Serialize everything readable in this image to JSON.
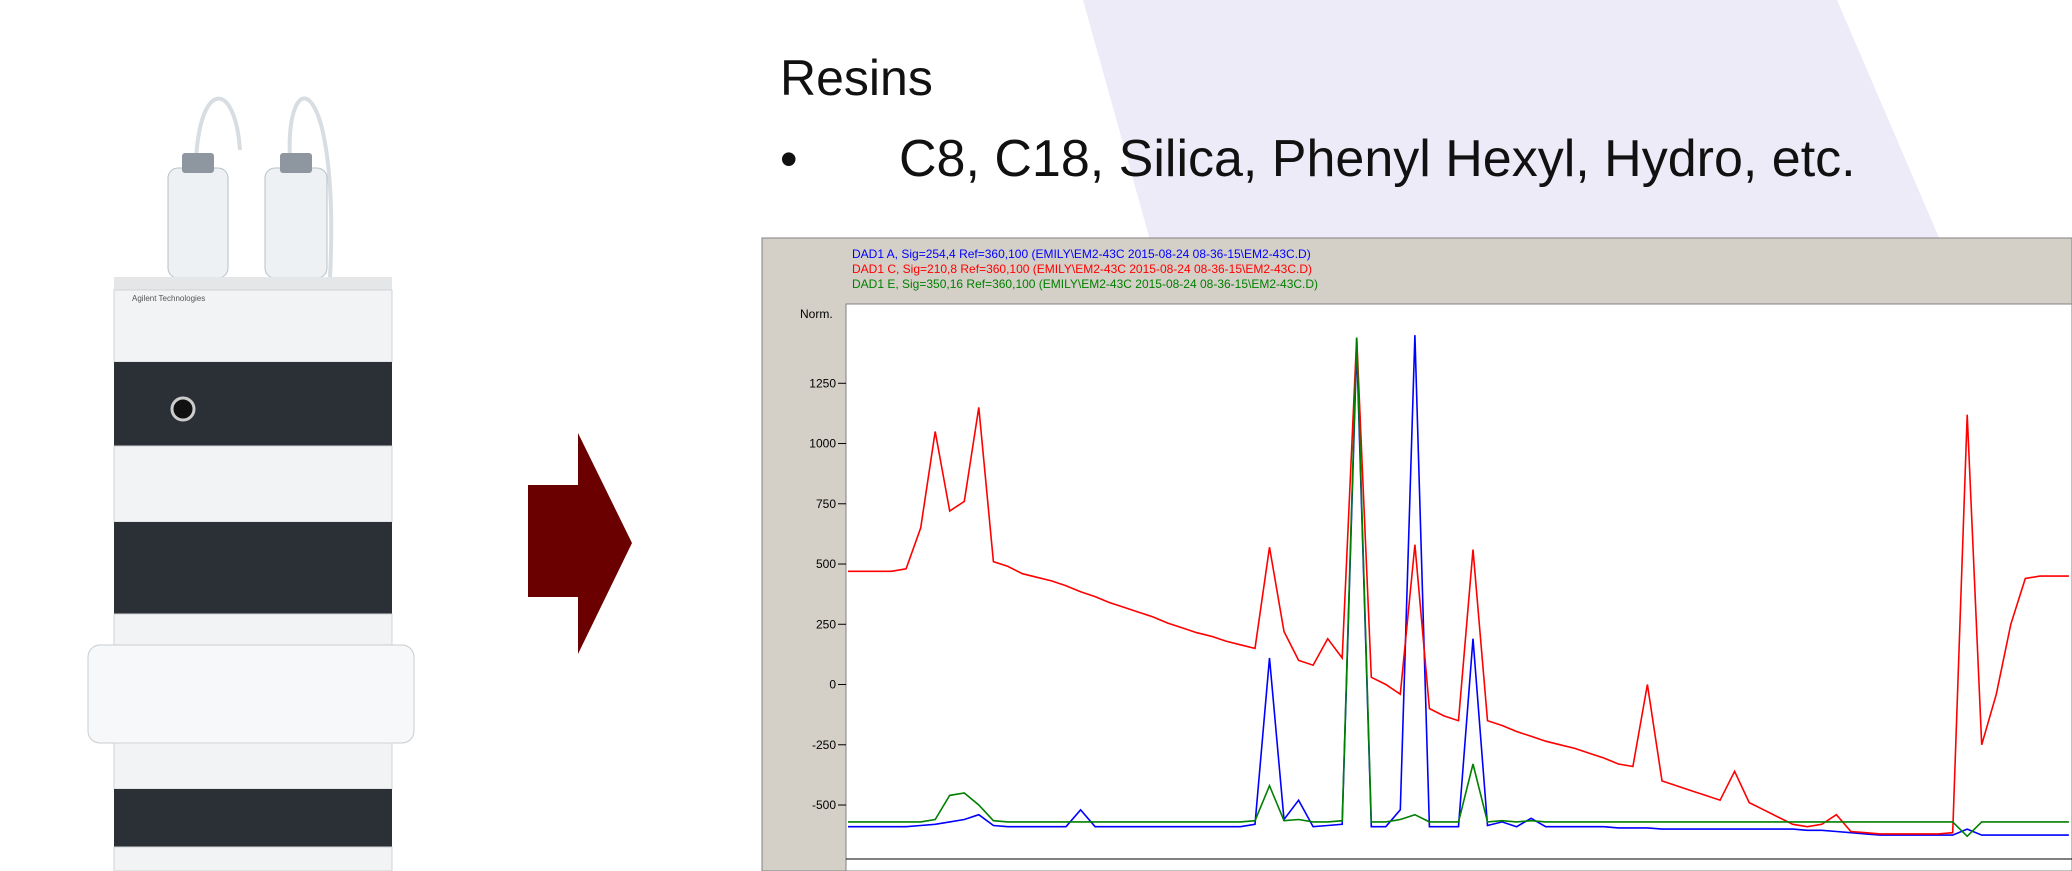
{
  "slide": {
    "heading": "Resins",
    "bullet": "•",
    "item": "C8, C18, Silica, Phenyl Hexyl, Hydro, etc.",
    "instrument_label": "Agilent Technologies"
  },
  "chart_data": {
    "type": "line",
    "y_label": "Norm.",
    "categories": [
      null,
      null,
      null,
      null,
      null,
      null,
      null,
      null,
      null,
      null,
      null,
      null,
      null,
      null,
      null,
      null,
      null,
      null,
      null,
      null,
      null,
      null,
      null,
      null,
      null,
      null,
      null,
      null,
      null,
      null,
      null,
      null,
      null,
      null,
      null,
      null,
      null,
      null,
      null,
      null,
      null,
      null,
      null,
      null,
      null,
      null,
      null,
      null,
      null,
      null,
      null,
      null,
      null,
      null,
      null,
      null,
      null,
      null,
      null,
      null,
      null,
      null,
      null,
      null,
      null,
      null,
      null,
      null,
      null,
      null,
      null,
      null,
      null,
      null,
      null,
      null,
      null,
      null,
      null,
      null,
      null,
      null,
      null,
      null,
      null
    ],
    "ylim": [
      -724,
      1579
    ],
    "yticks": [
      -500,
      -250,
      0,
      250,
      500,
      750,
      1000,
      1250
    ],
    "series": [
      {
        "name": "DAD1 A, Sig=254,4 Ref=360,100 (EMILY\\EM2-43C 2015-08-24 08-36-15\\EM2-43C.D)",
        "color": "#0000ff",
        "values": [
          -590,
          -590,
          -590,
          -590,
          -590,
          -585,
          -580,
          -570,
          -560,
          -540,
          -585,
          -590,
          -590,
          -590,
          -590,
          -590,
          -520,
          -590,
          -590,
          -590,
          -590,
          -590,
          -590,
          -590,
          -590,
          -590,
          -590,
          -590,
          -580,
          110,
          -560,
          -480,
          -590,
          -585,
          -580,
          1400,
          -590,
          -590,
          -520,
          1450,
          -590,
          -590,
          -590,
          190,
          -585,
          -570,
          -590,
          -555,
          -590,
          -590,
          -590,
          -590,
          -590,
          -595,
          -595,
          -595,
          -600,
          -600,
          -600,
          -600,
          -600,
          -600,
          -600,
          -600,
          -600,
          -600,
          -605,
          -605,
          -610,
          -615,
          -620,
          -625,
          -625,
          -625,
          -625,
          -625,
          -625,
          -600,
          -625,
          -625,
          -625,
          -625,
          -625,
          -625,
          -625
        ]
      },
      {
        "name": "DAD1 C, Sig=210,8 Ref=360,100 (EMILY\\EM2-43C 2015-08-24 08-36-15\\EM2-43C.D)",
        "color": "#ff0000",
        "values": [
          470,
          470,
          470,
          470,
          480,
          650,
          1050,
          720,
          760,
          1150,
          510,
          490,
          460,
          445,
          430,
          410,
          385,
          365,
          340,
          320,
          300,
          280,
          255,
          235,
          215,
          200,
          180,
          165,
          150,
          570,
          220,
          100,
          80,
          190,
          110,
          1440,
          30,
          0,
          -40,
          580,
          -100,
          -130,
          -150,
          560,
          -150,
          -170,
          -195,
          -215,
          -235,
          -250,
          -265,
          -285,
          -305,
          -330,
          -340,
          0,
          -400,
          -420,
          -440,
          -460,
          -480,
          -360,
          -490,
          -520,
          -550,
          -580,
          -590,
          -580,
          -540,
          -610,
          -615,
          -620,
          -620,
          -620,
          -620,
          -620,
          -615,
          1120,
          -250,
          -40,
          250,
          440,
          450,
          450,
          450
        ]
      },
      {
        "name": "DAD1 E, Sig=350,16 Ref=360,100 (EMILY\\EM2-43C 2015-08-24 08-36-15\\EM2-43C.D)",
        "color": "#008000",
        "values": [
          -570,
          -570,
          -570,
          -570,
          -570,
          -570,
          -560,
          -460,
          -450,
          -500,
          -565,
          -570,
          -570,
          -570,
          -570,
          -570,
          -570,
          -570,
          -570,
          -570,
          -570,
          -570,
          -570,
          -570,
          -570,
          -570,
          -570,
          -570,
          -565,
          -420,
          -565,
          -560,
          -570,
          -570,
          -565,
          1440,
          -570,
          -570,
          -560,
          -540,
          -570,
          -570,
          -570,
          -330,
          -570,
          -565,
          -570,
          -565,
          -570,
          -570,
          -570,
          -570,
          -570,
          -570,
          -570,
          -570,
          -570,
          -570,
          -570,
          -570,
          -570,
          -570,
          -570,
          -570,
          -570,
          -570,
          -570,
          -570,
          -570,
          -570,
          -570,
          -570,
          -570,
          -570,
          -570,
          -570,
          -570,
          -630,
          -570,
          -570,
          -570,
          -570,
          -570,
          -570,
          -570
        ]
      }
    ]
  }
}
